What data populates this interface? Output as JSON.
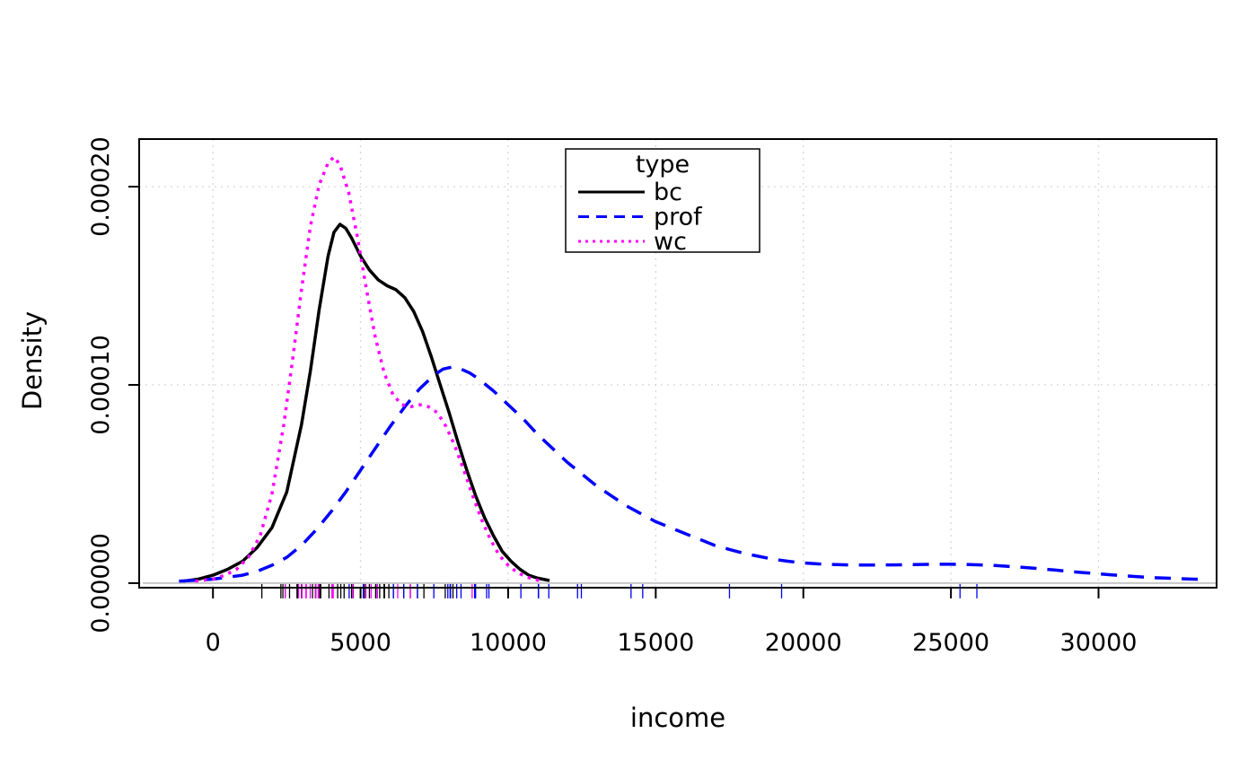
{
  "figure": {
    "background": "#ffffff"
  },
  "chart_data": {
    "type": "line",
    "title": "",
    "xlabel": "income",
    "ylabel": "Density",
    "xlim": [
      -2500,
      34000
    ],
    "ylim": [
      -2.3e-06,
      0.000224
    ],
    "grid": {
      "show": true,
      "color": "#d9d9d9",
      "style": "dotted"
    },
    "baseline": {
      "y": 0,
      "color": "#c8c8c8"
    },
    "x_ticks": [
      0,
      5000,
      10000,
      15000,
      20000,
      25000,
      30000
    ],
    "x_tick_labels": [
      "0",
      "5000",
      "10000",
      "15000",
      "20000",
      "25000",
      "30000"
    ],
    "y_ticks": [
      0,
      0.0001,
      0.0002
    ],
    "y_tick_labels": [
      "0.00000",
      "0.00010",
      "0.00020"
    ],
    "legend": {
      "title": "type",
      "position": "top-center",
      "entries": [
        {
          "label": "bc",
          "color": "#000000",
          "dash": "solid"
        },
        {
          "label": "prof",
          "color": "#0000ff",
          "dash": "dashed"
        },
        {
          "label": "wc",
          "color": "#ff00ff",
          "dash": "dotted"
        }
      ]
    },
    "series": [
      {
        "name": "bc",
        "color": "#000000",
        "dash": "solid",
        "points": [
          [
            -1000,
            1e-06
          ],
          [
            -500,
            2e-06
          ],
          [
            0,
            4e-06
          ],
          [
            500,
            7e-06
          ],
          [
            1000,
            1.1e-05
          ],
          [
            1500,
            1.8e-05
          ],
          [
            2000,
            2.8e-05
          ],
          [
            2500,
            4.6e-05
          ],
          [
            3000,
            8e-05
          ],
          [
            3300,
            0.000107
          ],
          [
            3600,
            0.000138
          ],
          [
            3900,
            0.000165
          ],
          [
            4100,
            0.000177
          ],
          [
            4300,
            0.000181
          ],
          [
            4500,
            0.000179
          ],
          [
            4700,
            0.000174
          ],
          [
            5000,
            0.000165
          ],
          [
            5300,
            0.000158
          ],
          [
            5600,
            0.000153
          ],
          [
            5900,
            0.00015
          ],
          [
            6200,
            0.000148
          ],
          [
            6500,
            0.000144
          ],
          [
            6800,
            0.000137
          ],
          [
            7100,
            0.000127
          ],
          [
            7400,
            0.000114
          ],
          [
            7700,
            0.0001
          ],
          [
            8000,
            8.6e-05
          ],
          [
            8300,
            7.1e-05
          ],
          [
            8600,
            5.7e-05
          ],
          [
            8900,
            4.4e-05
          ],
          [
            9200,
            3.3e-05
          ],
          [
            9500,
            2.4e-05
          ],
          [
            9800,
            1.6e-05
          ],
          [
            10100,
            1.1e-05
          ],
          [
            10400,
            7e-06
          ],
          [
            10700,
            4e-06
          ],
          [
            11000,
            2.5e-06
          ],
          [
            11400,
            1.3e-06
          ]
        ]
      },
      {
        "name": "prof",
        "color": "#0000ff",
        "dash": "dashed",
        "points": [
          [
            -1150,
            1e-06
          ],
          [
            -500,
            1.5e-06
          ],
          [
            0,
            2e-06
          ],
          [
            500,
            3e-06
          ],
          [
            1000,
            4e-06
          ],
          [
            1500,
            6e-06
          ],
          [
            2000,
            9e-06
          ],
          [
            2500,
            1.3e-05
          ],
          [
            3000,
            1.9e-05
          ],
          [
            3500,
            2.7e-05
          ],
          [
            4000,
            3.6e-05
          ],
          [
            4500,
            4.6e-05
          ],
          [
            5000,
            5.7e-05
          ],
          [
            5500,
            6.8e-05
          ],
          [
            6000,
            7.9e-05
          ],
          [
            6500,
            8.9e-05
          ],
          [
            7000,
            9.8e-05
          ],
          [
            7500,
            0.000105
          ],
          [
            7800,
            0.000108
          ],
          [
            8100,
            0.000109
          ],
          [
            8400,
            0.000108
          ],
          [
            8700,
            0.000106
          ],
          [
            9000,
            0.000103
          ],
          [
            9500,
            9.7e-05
          ],
          [
            10000,
            9e-05
          ],
          [
            10500,
            8.3e-05
          ],
          [
            11000,
            7.5e-05
          ],
          [
            11500,
            6.8e-05
          ],
          [
            12000,
            6.1e-05
          ],
          [
            12500,
            5.5e-05
          ],
          [
            13000,
            4.9e-05
          ],
          [
            13500,
            4.4e-05
          ],
          [
            14000,
            3.9e-05
          ],
          [
            14500,
            3.5e-05
          ],
          [
            15000,
            3.1e-05
          ],
          [
            15500,
            2.8e-05
          ],
          [
            16000,
            2.5e-05
          ],
          [
            16500,
            2.2e-05
          ],
          [
            17000,
            1.9e-05
          ],
          [
            17500,
            1.7e-05
          ],
          [
            18000,
            1.5e-05
          ],
          [
            18500,
            1.35e-05
          ],
          [
            19000,
            1.2e-05
          ],
          [
            19500,
            1.1e-05
          ],
          [
            20000,
            1.02e-05
          ],
          [
            20500,
            9.7e-06
          ],
          [
            21000,
            9.4e-06
          ],
          [
            21500,
            9.2e-06
          ],
          [
            22000,
            9.1e-06
          ],
          [
            22500,
            9.1e-06
          ],
          [
            23000,
            9.2e-06
          ],
          [
            23500,
            9.3e-06
          ],
          [
            24000,
            9.4e-06
          ],
          [
            24500,
            9.5e-06
          ],
          [
            25000,
            9.5e-06
          ],
          [
            25500,
            9.4e-06
          ],
          [
            26000,
            9.2e-06
          ],
          [
            26500,
            8.9e-06
          ],
          [
            27000,
            8.4e-06
          ],
          [
            27500,
            7.9e-06
          ],
          [
            28000,
            7.3e-06
          ],
          [
            28500,
            6.6e-06
          ],
          [
            29000,
            5.9e-06
          ],
          [
            29500,
            5.3e-06
          ],
          [
            30000,
            4.7e-06
          ],
          [
            30500,
            4.1e-06
          ],
          [
            31000,
            3.6e-06
          ],
          [
            31500,
            3.1e-06
          ],
          [
            32000,
            2.7e-06
          ],
          [
            32500,
            2.4e-06
          ],
          [
            33000,
            2.1e-06
          ],
          [
            33500,
            1.9e-06
          ]
        ]
      },
      {
        "name": "wc",
        "color": "#ff00ff",
        "dash": "dotted",
        "points": [
          [
            -600,
            1e-06
          ],
          [
            0,
            2e-06
          ],
          [
            400,
            4e-06
          ],
          [
            800,
            7e-06
          ],
          [
            1200,
            1.3e-05
          ],
          [
            1600,
            2.4e-05
          ],
          [
            2000,
            4.5e-05
          ],
          [
            2400,
            8e-05
          ],
          [
            2700,
            0.000113
          ],
          [
            3000,
            0.000148
          ],
          [
            3300,
            0.00018
          ],
          [
            3600,
            0.000201
          ],
          [
            3900,
            0.000212
          ],
          [
            4100,
            0.000215
          ],
          [
            4300,
            0.000211
          ],
          [
            4600,
            0.000197
          ],
          [
            4900,
            0.000174
          ],
          [
            5200,
            0.000148
          ],
          [
            5500,
            0.000124
          ],
          [
            5800,
            0.000106
          ],
          [
            6100,
            9.5e-05
          ],
          [
            6400,
            9e-05
          ],
          [
            6700,
            8.9e-05
          ],
          [
            7000,
            9e-05
          ],
          [
            7300,
            8.9e-05
          ],
          [
            7600,
            8.6e-05
          ],
          [
            7900,
            7.9e-05
          ],
          [
            8200,
            6.9e-05
          ],
          [
            8500,
            5.7e-05
          ],
          [
            8800,
            4.4e-05
          ],
          [
            9100,
            3.2e-05
          ],
          [
            9400,
            2.2e-05
          ],
          [
            9700,
            1.4e-05
          ],
          [
            10000,
            9e-06
          ],
          [
            10300,
            5.5e-06
          ],
          [
            10600,
            3.2e-06
          ],
          [
            10900,
            1.8e-06
          ],
          [
            11100,
            1.2e-06
          ]
        ]
      }
    ],
    "rug": [
      {
        "name": "bc",
        "color": "#000000",
        "values": [
          1656,
          2301,
          2370,
          2448,
          2594,
          2847,
          2877,
          3000,
          3372,
          3472,
          3485,
          3617,
          3652,
          3930,
          4036,
          4224,
          4330,
          4443,
          4696,
          4753,
          5134,
          5299,
          5511,
          5562,
          5648,
          5795,
          5811,
          5959,
          6112,
          6462,
          6686,
          6928,
          7147,
          7869,
          8131,
          8895
        ]
      },
      {
        "name": "prof",
        "color": "#0000ff",
        "values": [
          4614,
          5092,
          5562,
          6112,
          6462,
          6928,
          7482,
          7956,
          8034,
          8049,
          8258,
          8403,
          8865,
          8891,
          9271,
          9348,
          10432,
          11023,
          11030,
          11377,
          12351,
          12480,
          14163,
          14558,
          17498,
          19263,
          25308,
          25879
        ]
      },
      {
        "name": "wc",
        "color": "#ff00ff",
        "values": [
          2448,
          2901,
          3016,
          3148,
          3161,
          3295,
          3485,
          3565,
          3574,
          4036,
          4075,
          4741,
          5180,
          5357,
          5562,
          6259,
          6686,
          8780
        ]
      }
    ]
  }
}
